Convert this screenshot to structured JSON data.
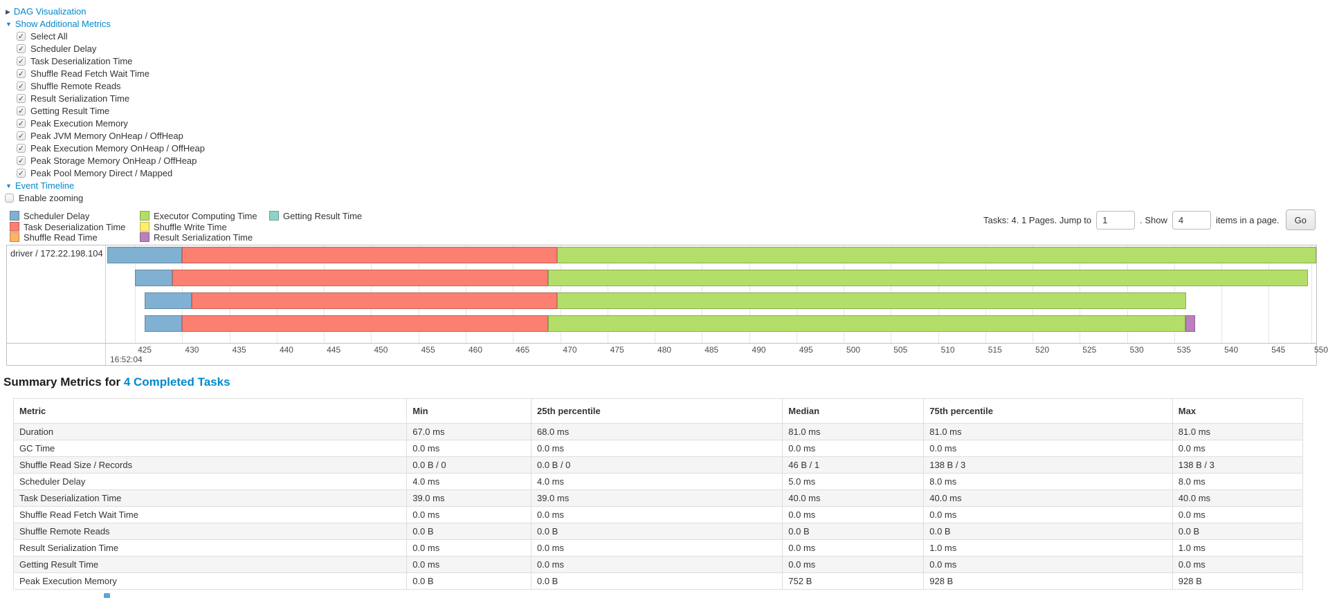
{
  "palette": {
    "scheduler_delay": "#80B1D3",
    "task_deserialization": "#FB8072",
    "shuffle_read": "#FDB462",
    "executor_computing": "#B3DE69",
    "shuffle_write": "#FFED6F",
    "result_serialization": "#BC80BD",
    "getting_result": "#8DD3C7",
    "link": "#0088cc"
  },
  "toggles": {
    "dag": {
      "arrow": "▶",
      "label": "DAG Visualization"
    },
    "additional_metrics": {
      "arrow": "▼",
      "label": "Show Additional Metrics"
    },
    "event_timeline": {
      "arrow": "▼",
      "label": "Event Timeline"
    }
  },
  "metrics_panel": {
    "checkboxes": [
      {
        "label": "Select All",
        "checked": true
      },
      {
        "label": "Scheduler Delay",
        "checked": true
      },
      {
        "label": "Task Deserialization Time",
        "checked": true
      },
      {
        "label": "Shuffle Read Fetch Wait Time",
        "checked": true
      },
      {
        "label": "Shuffle Remote Reads",
        "checked": true
      },
      {
        "label": "Result Serialization Time",
        "checked": true
      },
      {
        "label": "Getting Result Time",
        "checked": true
      },
      {
        "label": "Peak Execution Memory",
        "checked": true
      },
      {
        "label": "Peak JVM Memory OnHeap / OffHeap",
        "checked": true
      },
      {
        "label": "Peak Execution Memory OnHeap / OffHeap",
        "checked": true
      },
      {
        "label": "Peak Storage Memory OnHeap / OffHeap",
        "checked": true
      },
      {
        "label": "Peak Pool Memory Direct / Mapped",
        "checked": true
      }
    ],
    "enable_zooming": {
      "label": "Enable zooming",
      "checked": false
    }
  },
  "legend": {
    "columns": [
      [
        {
          "metric": "scheduler_delay",
          "label": "Scheduler Delay"
        },
        {
          "metric": "task_deserialization",
          "label": "Task Deserialization Time"
        },
        {
          "metric": "shuffle_read",
          "label": "Shuffle Read Time"
        }
      ],
      [
        {
          "metric": "executor_computing",
          "label": "Executor Computing Time"
        },
        {
          "metric": "shuffle_write",
          "label": "Shuffle Write Time"
        },
        {
          "metric": "result_serialization",
          "label": "Result Serialization Time"
        }
      ],
      [
        {
          "metric": "getting_result",
          "label": "Getting Result Time"
        }
      ]
    ]
  },
  "pagination": {
    "tasks_pages_text": "Tasks: 4. 1 Pages. Jump to",
    "jump_value": "1",
    "show_text": ". Show",
    "show_value": "4",
    "items_text": "items in a page.",
    "go_label": "Go"
  },
  "chart_data": {
    "type": "timeline",
    "group_label": "driver / 172.22.198.104",
    "x_axis": {
      "major_label": "16:52:04",
      "ticks": [
        {
          "label": "425",
          "pct": 2.35
        },
        {
          "label": "430",
          "pct": 6.26
        },
        {
          "label": "435",
          "pct": 10.16
        },
        {
          "label": "440",
          "pct": 14.07
        },
        {
          "label": "445",
          "pct": 17.97
        },
        {
          "label": "450",
          "pct": 21.88
        },
        {
          "label": "455",
          "pct": 25.78
        },
        {
          "label": "460",
          "pct": 29.69
        },
        {
          "label": "465",
          "pct": 33.59
        },
        {
          "label": "470",
          "pct": 37.5
        },
        {
          "label": "475",
          "pct": 41.4
        },
        {
          "label": "480",
          "pct": 45.31
        },
        {
          "label": "485",
          "pct": 49.21
        },
        {
          "label": "490",
          "pct": 53.12
        },
        {
          "label": "495",
          "pct": 57.02
        },
        {
          "label": "500",
          "pct": 60.93
        },
        {
          "label": "505",
          "pct": 64.83
        },
        {
          "label": "510",
          "pct": 68.74
        },
        {
          "label": "515",
          "pct": 72.64
        },
        {
          "label": "520",
          "pct": 76.55
        },
        {
          "label": "525",
          "pct": 80.45
        },
        {
          "label": "530",
          "pct": 84.36
        },
        {
          "label": "535",
          "pct": 88.26
        },
        {
          "label": "540",
          "pct": 92.17
        },
        {
          "label": "545",
          "pct": 96.07
        },
        {
          "label": "550",
          "pct": 99.6
        }
      ]
    },
    "tasks": [
      {
        "segments": [
          {
            "metric": "scheduler_delay",
            "from_pct": 0.05,
            "to_pct": 6.22,
            "from_ms": 422,
            "to_ms": 430
          },
          {
            "metric": "task_deserialization",
            "from_pct": 6.22,
            "to_pct": 37.22,
            "from_ms": 430,
            "to_ms": 469.5
          },
          {
            "metric": "executor_computing",
            "from_pct": 37.22,
            "to_pct": 100.0,
            "from_ms": 469.5,
            "to_ms": 550
          }
        ]
      },
      {
        "segments": [
          {
            "metric": "scheduler_delay",
            "from_pct": 2.33,
            "to_pct": 5.41,
            "from_ms": 425,
            "to_ms": 429
          },
          {
            "metric": "task_deserialization",
            "from_pct": 5.41,
            "to_pct": 36.51,
            "from_ms": 429,
            "to_ms": 468.5
          },
          {
            "metric": "executor_computing",
            "from_pct": 36.51,
            "to_pct": 99.3,
            "from_ms": 468.5,
            "to_ms": 549
          }
        ]
      },
      {
        "segments": [
          {
            "metric": "scheduler_delay",
            "from_pct": 3.14,
            "to_pct": 7.03,
            "from_ms": 426,
            "to_ms": 431
          },
          {
            "metric": "task_deserialization",
            "from_pct": 7.03,
            "to_pct": 37.22,
            "from_ms": 431,
            "to_ms": 469.5
          },
          {
            "metric": "executor_computing",
            "from_pct": 37.22,
            "to_pct": 89.25,
            "from_ms": 469.5,
            "to_ms": 536
          }
        ]
      },
      {
        "segments": [
          {
            "metric": "scheduler_delay",
            "from_pct": 3.14,
            "to_pct": 6.22,
            "from_ms": 426,
            "to_ms": 430
          },
          {
            "metric": "task_deserialization",
            "from_pct": 6.22,
            "to_pct": 36.51,
            "from_ms": 430,
            "to_ms": 468.5
          },
          {
            "metric": "executor_computing",
            "from_pct": 36.51,
            "to_pct": 89.18,
            "from_ms": 468.5,
            "to_ms": 536
          },
          {
            "metric": "result_serialization",
            "from_pct": 89.18,
            "to_pct": 89.98,
            "from_ms": 536,
            "to_ms": 537
          }
        ]
      }
    ]
  },
  "summary": {
    "title_prefix": "Summary Metrics for ",
    "title_link": "4 Completed Tasks",
    "columns": [
      "Metric",
      "Min",
      "25th percentile",
      "Median",
      "75th percentile",
      "Max"
    ],
    "rows": [
      [
        "Duration",
        "67.0 ms",
        "68.0 ms",
        "81.0 ms",
        "81.0 ms",
        "81.0 ms"
      ],
      [
        "GC Time",
        "0.0 ms",
        "0.0 ms",
        "0.0 ms",
        "0.0 ms",
        "0.0 ms"
      ],
      [
        "Shuffle Read Size / Records",
        "0.0 B / 0",
        "0.0 B / 0",
        "46 B / 1",
        "138 B / 3",
        "138 B / 3"
      ],
      [
        "Scheduler Delay",
        "4.0 ms",
        "4.0 ms",
        "5.0 ms",
        "8.0 ms",
        "8.0 ms"
      ],
      [
        "Task Deserialization Time",
        "39.0 ms",
        "39.0 ms",
        "40.0 ms",
        "40.0 ms",
        "40.0 ms"
      ],
      [
        "Shuffle Read Fetch Wait Time",
        "0.0 ms",
        "0.0 ms",
        "0.0 ms",
        "0.0 ms",
        "0.0 ms"
      ],
      [
        "Shuffle Remote Reads",
        "0.0 B",
        "0.0 B",
        "0.0 B",
        "0.0 B",
        "0.0 B"
      ],
      [
        "Result Serialization Time",
        "0.0 ms",
        "0.0 ms",
        "0.0 ms",
        "1.0 ms",
        "1.0 ms"
      ],
      [
        "Getting Result Time",
        "0.0 ms",
        "0.0 ms",
        "0.0 ms",
        "0.0 ms",
        "0.0 ms"
      ],
      [
        "Peak Execution Memory",
        "0.0 B",
        "0.0 B",
        "752 B",
        "928 B",
        "928 B"
      ]
    ]
  }
}
